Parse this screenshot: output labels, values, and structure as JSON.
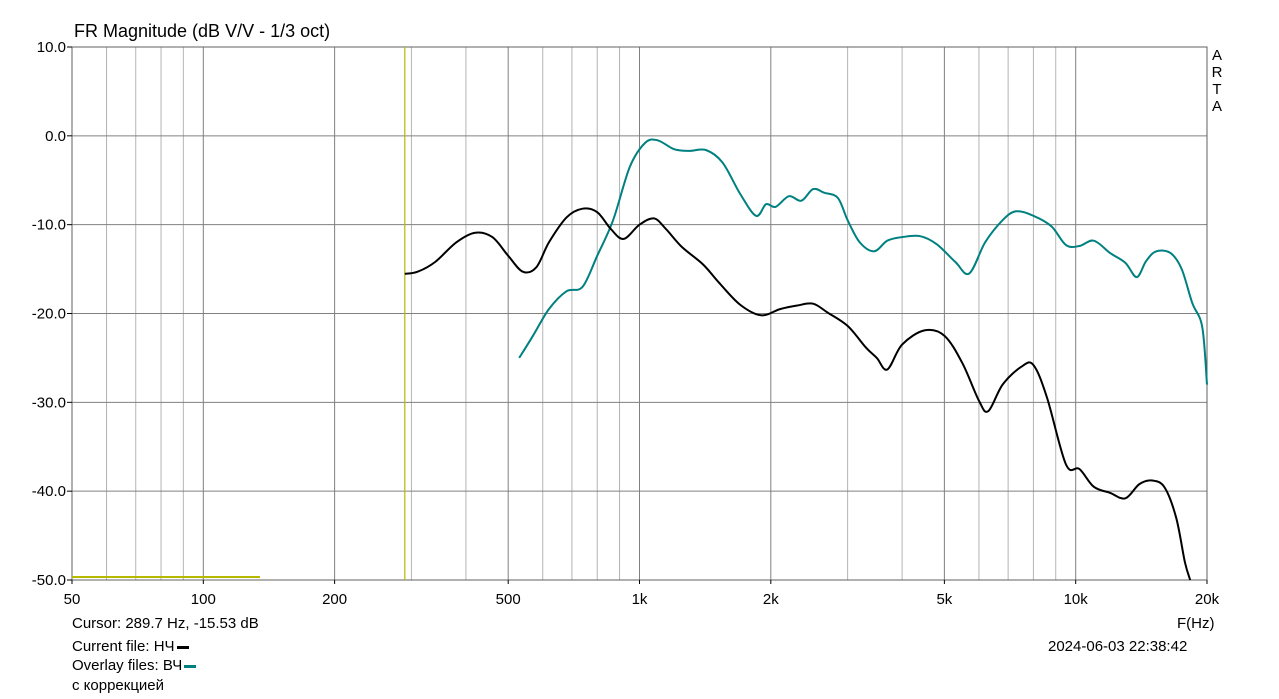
{
  "chart_data": {
    "type": "line",
    "title": "FR Magnitude (dB V/V - 1/3 oct)",
    "xlabel": "F(Hz)",
    "ylabel": "",
    "x_scale": "log",
    "xlim": [
      50,
      20000
    ],
    "ylim": [
      -50,
      10
    ],
    "grid": true,
    "y_ticks": [
      10,
      0,
      -10,
      -20,
      -30,
      -40,
      -50
    ],
    "y_tick_labels": [
      "10.0",
      "0.0",
      "-10.0",
      "-20.0",
      "-30.0",
      "-40.0",
      "-50.0"
    ],
    "x_ticks": [
      50,
      100,
      200,
      500,
      1000,
      2000,
      5000,
      10000,
      20000
    ],
    "x_tick_labels": [
      "50",
      "100",
      "200",
      "500",
      "1k",
      "2k",
      "5k",
      "10k",
      "20k"
    ],
    "cursor_freq": 289.7,
    "series": [
      {
        "name": "НЧ",
        "color": "#000000",
        "x": [
          289.7,
          310,
          340,
          380,
          420,
          460,
          500,
          540,
          580,
          620,
          680,
          740,
          800,
          860,
          920,
          1000,
          1080,
          1150,
          1250,
          1400,
          1520,
          1700,
          1900,
          2100,
          2300,
          2500,
          2700,
          3000,
          3300,
          3500,
          3700,
          4000,
          4500,
          5000,
          5500,
          6000,
          6300,
          6800,
          7500,
          8000,
          8600,
          9500,
          10200,
          11000,
          12000,
          13000,
          14000,
          15000,
          16000,
          17000,
          17800,
          18300
        ],
        "values": [
          -15.53,
          -15.3,
          -14.2,
          -12.0,
          -10.9,
          -11.4,
          -13.5,
          -15.3,
          -14.8,
          -12.0,
          -9.2,
          -8.2,
          -8.6,
          -10.5,
          -11.6,
          -10.0,
          -9.3,
          -10.5,
          -12.5,
          -14.5,
          -16.5,
          -19.0,
          -20.2,
          -19.5,
          -19.1,
          -18.9,
          -19.9,
          -21.4,
          -23.8,
          -25.0,
          -26.3,
          -23.5,
          -21.9,
          -22.5,
          -25.6,
          -29.8,
          -31.0,
          -28.0,
          -26.0,
          -25.8,
          -29.5,
          -37.0,
          -37.5,
          -39.5,
          -40.2,
          -40.8,
          -39.2,
          -38.8,
          -39.6,
          -43.0,
          -48.0,
          -50.0
        ]
      },
      {
        "name": "ВЧ",
        "color": "#008080",
        "x": [
          530,
          570,
          620,
          680,
          740,
          800,
          870,
          950,
          1030,
          1100,
          1200,
          1300,
          1420,
          1550,
          1700,
          1850,
          1950,
          2050,
          2200,
          2350,
          2500,
          2650,
          2850,
          3000,
          3200,
          3450,
          3700,
          4000,
          4400,
          4800,
          5300,
          5700,
          6200,
          6800,
          7300,
          8000,
          8800,
          9500,
          10200,
          11000,
          12000,
          13000,
          13800,
          14500,
          15300,
          16500,
          17500,
          18500,
          19500,
          20000
        ],
        "values": [
          -25.0,
          -22.5,
          -19.5,
          -17.5,
          -17.0,
          -13.5,
          -9.5,
          -3.5,
          -0.8,
          -0.5,
          -1.5,
          -1.7,
          -1.6,
          -3.0,
          -6.5,
          -9.0,
          -7.7,
          -8.0,
          -6.8,
          -7.3,
          -6.0,
          -6.4,
          -7.0,
          -9.5,
          -12.0,
          -13.0,
          -11.8,
          -11.4,
          -11.3,
          -12.2,
          -14.2,
          -15.5,
          -12.0,
          -9.5,
          -8.5,
          -9.0,
          -10.2,
          -12.3,
          -12.4,
          -11.8,
          -13.2,
          -14.3,
          -15.9,
          -14.1,
          -13.0,
          -13.2,
          -15.0,
          -18.8,
          -21.5,
          -28.0
        ]
      }
    ]
  },
  "title": "FR Magnitude (dB V/V - 1/3 oct)",
  "brand": [
    "A",
    "R",
    "T",
    "A"
  ],
  "cursor_text": "Cursor: 289.7 Hz, -15.53 dB",
  "current_file_label": "Current file: НЧ",
  "overlay_files_label": "Overlay files: ВЧ",
  "overlay_note": "с коррекцией",
  "timestamp": "2024-06-03   22:38:42",
  "x_unit": "F(Hz)",
  "colors": {
    "grid": "#a0a0a0",
    "cursor": "#b8b800",
    "current": "#000000",
    "overlay": "#008080"
  }
}
